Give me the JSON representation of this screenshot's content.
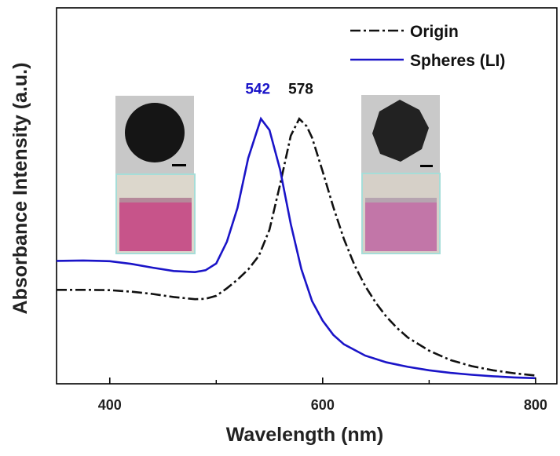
{
  "chart_data": {
    "type": "line",
    "xlabel": "Wavelength (nm)",
    "ylabel": "Absorbance Intensity (a.u.)",
    "xlim": [
      350,
      820
    ],
    "ylim": [
      0,
      1.0
    ],
    "xticks": [
      400,
      600,
      800
    ],
    "yticks_shown": false,
    "grid": false,
    "legend_position": "top-right",
    "series": [
      {
        "name": "Origin",
        "color": "#111111",
        "style": "dash-dot",
        "x": [
          350,
          380,
          400,
          420,
          440,
          460,
          480,
          490,
          500,
          510,
          520,
          530,
          540,
          550,
          560,
          570,
          578,
          585,
          590,
          600,
          610,
          620,
          630,
          640,
          650,
          660,
          670,
          680,
          700,
          720,
          740,
          760,
          780,
          800
        ],
        "y": [
          0.25,
          0.25,
          0.249,
          0.245,
          0.239,
          0.231,
          0.225,
          0.226,
          0.234,
          0.254,
          0.277,
          0.304,
          0.34,
          0.41,
          0.53,
          0.66,
          0.705,
          0.685,
          0.655,
          0.565,
          0.47,
          0.385,
          0.315,
          0.26,
          0.215,
          0.178,
          0.148,
          0.123,
          0.088,
          0.063,
          0.047,
          0.036,
          0.028,
          0.022
        ]
      },
      {
        "name": "Spheres (LI)",
        "color": "#1a14c8",
        "style": "solid",
        "x": [
          350,
          375,
          400,
          420,
          440,
          460,
          480,
          490,
          500,
          510,
          520,
          530,
          542,
          550,
          560,
          570,
          580,
          590,
          600,
          610,
          620,
          640,
          660,
          680,
          700,
          720,
          740,
          760,
          780,
          800
        ],
        "y": [
          0.327,
          0.328,
          0.326,
          0.319,
          0.309,
          0.3,
          0.297,
          0.302,
          0.32,
          0.378,
          0.468,
          0.6,
          0.705,
          0.675,
          0.57,
          0.425,
          0.305,
          0.22,
          0.168,
          0.13,
          0.105,
          0.075,
          0.057,
          0.045,
          0.036,
          0.029,
          0.024,
          0.02,
          0.017,
          0.015
        ]
      }
    ],
    "annotations": [
      {
        "text": "542",
        "color": "#1a14c8"
      },
      {
        "text": "578",
        "color": "#111111"
      }
    ]
  }
}
